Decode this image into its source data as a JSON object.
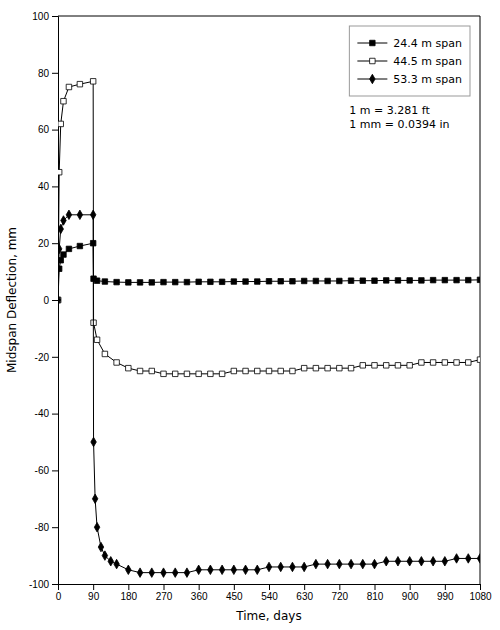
{
  "chart_data": {
    "type": "line",
    "title": "",
    "xlabel": "Time, days",
    "ylabel": "Midspan Deflection, mm",
    "xlim": [
      0,
      1080
    ],
    "ylim": [
      -100,
      100
    ],
    "xticks": [
      0,
      90,
      180,
      270,
      360,
      450,
      540,
      630,
      720,
      810,
      900,
      990,
      1080
    ],
    "yticks": [
      -100,
      -80,
      -60,
      -40,
      -20,
      0,
      20,
      40,
      60,
      80,
      100
    ],
    "grid": false,
    "legend": "upper right",
    "annotation": "1 m = 3.281 ft\n1 mm = 0.0394 in",
    "series": [
      {
        "name": "24.4 m span",
        "color": "black",
        "marker": "square",
        "x": [
          0,
          3,
          7,
          14,
          28,
          56,
          90,
          91,
          100,
          120,
          150,
          180,
          210,
          240,
          270,
          300,
          330,
          360,
          390,
          420,
          450,
          480,
          510,
          540,
          570,
          600,
          630,
          660,
          690,
          720,
          750,
          780,
          810,
          840,
          870,
          900,
          930,
          960,
          990,
          1020,
          1050,
          1080
        ],
        "values": [
          0,
          11,
          14,
          16,
          18,
          19,
          20,
          7.5,
          6.8,
          6.5,
          6.3,
          6.2,
          6.2,
          6.2,
          6.3,
          6.3,
          6.3,
          6.4,
          6.4,
          6.4,
          6.5,
          6.5,
          6.5,
          6.6,
          6.6,
          6.6,
          6.7,
          6.7,
          6.7,
          6.7,
          6.8,
          6.8,
          6.8,
          6.9,
          6.9,
          6.9,
          6.9,
          7.0,
          7.0,
          7.0,
          7.0,
          7.1
        ]
      },
      {
        "name": "44.5 m span",
        "color": "black",
        "marker": "square-open",
        "x": [
          0,
          3,
          7,
          14,
          28,
          56,
          90,
          91,
          100,
          120,
          150,
          180,
          210,
          240,
          270,
          300,
          330,
          360,
          390,
          420,
          450,
          480,
          510,
          540,
          570,
          600,
          630,
          660,
          690,
          720,
          750,
          780,
          810,
          840,
          870,
          900,
          930,
          960,
          990,
          1020,
          1050,
          1080
        ],
        "values": [
          0,
          45,
          62,
          70,
          75,
          76,
          77,
          -8,
          -14,
          -19,
          -22,
          -24,
          -25,
          -25,
          -26,
          -26,
          -26,
          -26,
          -26,
          -26,
          -25,
          -25,
          -25,
          -25,
          -25,
          -25,
          -24,
          -24,
          -24,
          -24,
          -24,
          -23,
          -23,
          -23,
          -23,
          -23,
          -22,
          -22,
          -22,
          -22,
          -22,
          -21
        ]
      },
      {
        "name": "53.3 m span",
        "color": "black",
        "marker": "diamond",
        "x": [
          0,
          3,
          7,
          14,
          28,
          56,
          90,
          91,
          95,
          100,
          110,
          120,
          135,
          150,
          180,
          210,
          240,
          270,
          300,
          330,
          360,
          390,
          420,
          450,
          480,
          510,
          540,
          570,
          600,
          630,
          660,
          690,
          720,
          750,
          780,
          810,
          840,
          870,
          900,
          930,
          960,
          990,
          1020,
          1050,
          1080
        ],
        "values": [
          0,
          18,
          25,
          28,
          30,
          30,
          30,
          -50,
          -70,
          -80,
          -87,
          -90,
          -92,
          -93,
          -95,
          -96,
          -96,
          -96,
          -96,
          -96,
          -95,
          -95,
          -95,
          -95,
          -95,
          -95,
          -94,
          -94,
          -94,
          -94,
          -93,
          -93,
          -93,
          -93,
          -93,
          -93,
          -92,
          -92,
          -92,
          -92,
          -92,
          -92,
          -91,
          -91,
          -91
        ]
      }
    ]
  }
}
